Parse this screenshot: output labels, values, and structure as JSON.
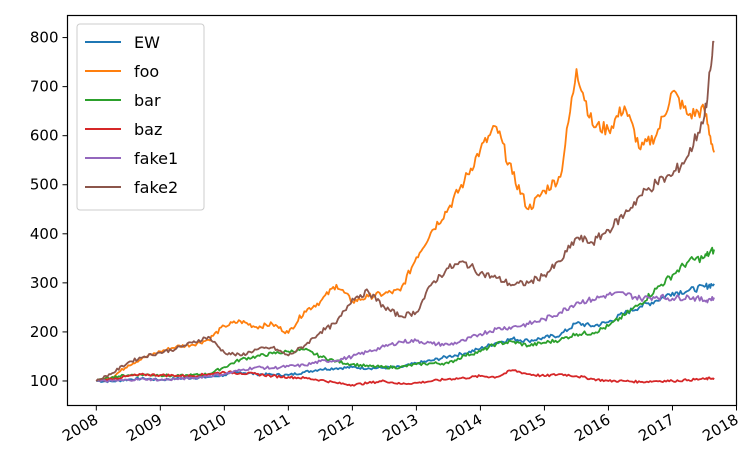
{
  "chart_data": {
    "type": "line",
    "title": "",
    "xlabel": "",
    "ylabel": "",
    "x_ticks": [
      "2008",
      "2009",
      "2010",
      "2011",
      "2012",
      "2013",
      "2014",
      "2015",
      "2016",
      "2017",
      "2018"
    ],
    "y_ticks": [
      "100",
      "200",
      "300",
      "400",
      "500",
      "600",
      "700",
      "800"
    ],
    "xlim": [
      2007.55,
      2018.0
    ],
    "ylim": [
      50,
      845
    ],
    "grid": false,
    "legend_position": "top-left",
    "x": [
      2008.0,
      2008.25,
      2008.5,
      2008.75,
      2009.0,
      2009.25,
      2009.5,
      2009.75,
      2010.0,
      2010.25,
      2010.5,
      2010.75,
      2011.0,
      2011.25,
      2011.5,
      2011.75,
      2012.0,
      2012.25,
      2012.5,
      2012.75,
      2013.0,
      2013.25,
      2013.5,
      2013.75,
      2014.0,
      2014.25,
      2014.5,
      2014.75,
      2015.0,
      2015.25,
      2015.5,
      2015.75,
      2016.0,
      2016.25,
      2016.5,
      2016.75,
      2017.0,
      2017.25,
      2017.5,
      2017.65
    ],
    "series": [
      {
        "name": "EW",
        "color": "#1f77b4",
        "values": [
          100,
          99,
          103,
          105,
          102,
          105,
          106,
          108,
          112,
          118,
          114,
          113,
          112,
          118,
          124,
          126,
          128,
          126,
          127,
          128,
          136,
          142,
          150,
          156,
          166,
          178,
          186,
          182,
          188,
          194,
          218,
          212,
          220,
          238,
          252,
          264,
          280,
          284,
          292,
          298
        ]
      },
      {
        "name": "foo",
        "color": "#ff7f0e",
        "values": [
          100,
          108,
          132,
          148,
          160,
          170,
          174,
          184,
          212,
          222,
          210,
          216,
          198,
          242,
          262,
          296,
          262,
          272,
          278,
          284,
          352,
          408,
          452,
          508,
          572,
          618,
          522,
          450,
          488,
          516,
          736,
          622,
          612,
          660,
          572,
          602,
          690,
          642,
          652,
          566
        ]
      },
      {
        "name": "bar",
        "color": "#2ca02c",
        "values": [
          100,
          108,
          112,
          113,
          112,
          110,
          112,
          114,
          128,
          144,
          150,
          156,
          160,
          164,
          150,
          140,
          134,
          130,
          128,
          128,
          134,
          136,
          136,
          152,
          160,
          176,
          180,
          172,
          178,
          184,
          196,
          198,
          212,
          234,
          258,
          288,
          316,
          344,
          352,
          368
        ]
      },
      {
        "name": "baz",
        "color": "#d62728",
        "values": [
          100,
          104,
          110,
          113,
          112,
          111,
          110,
          114,
          118,
          116,
          114,
          110,
          108,
          106,
          102,
          96,
          92,
          96,
          100,
          94,
          96,
          100,
          104,
          106,
          110,
          108,
          122,
          114,
          110,
          114,
          110,
          104,
          100,
          100,
          98,
          100,
          100,
          102,
          104,
          106
        ]
      },
      {
        "name": "fake1",
        "color": "#9467bd",
        "values": [
          100,
          100,
          102,
          104,
          102,
          104,
          106,
          110,
          114,
          122,
          128,
          126,
          130,
          132,
          140,
          142,
          150,
          160,
          170,
          180,
          182,
          176,
          174,
          182,
          196,
          206,
          210,
          216,
          226,
          240,
          260,
          266,
          276,
          278,
          268,
          272,
          268,
          272,
          264,
          270
        ]
      },
      {
        "name": "fake2",
        "color": "#8c564b",
        "values": [
          100,
          116,
          138,
          150,
          158,
          166,
          178,
          190,
          158,
          152,
          164,
          168,
          152,
          172,
          200,
          218,
          268,
          282,
          250,
          232,
          240,
          300,
          330,
          342,
          320,
          310,
          296,
          300,
          316,
          344,
          392,
          382,
          408,
          440,
          478,
          504,
          520,
          560,
          640,
          790
        ]
      }
    ]
  }
}
